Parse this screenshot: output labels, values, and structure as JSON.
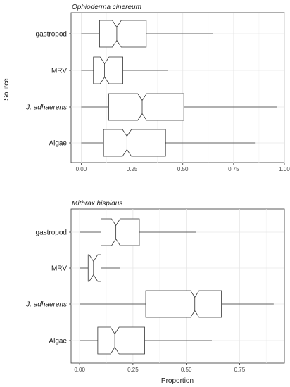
{
  "chart_data": [
    {
      "type": "boxplot",
      "orientation": "horizontal",
      "notched": true,
      "title": "Ophioderma cinereum",
      "xlabel": "",
      "ylabel": "Source",
      "xlim": [
        -0.05,
        1.0
      ],
      "xticks": [
        "0.00",
        "0.25",
        "0.50",
        "0.75",
        "1.00"
      ],
      "xtick_values": [
        0,
        0.25,
        0.5,
        0.75,
        1.0
      ],
      "grid": true,
      "categories": [
        {
          "label": "gastropod",
          "italic": false,
          "min": 0.0,
          "q1": 0.09,
          "median": 0.175,
          "q3": 0.32,
          "max": 0.65
        },
        {
          "label": "MRV",
          "italic": false,
          "min": 0.0,
          "q1": 0.06,
          "median": 0.115,
          "q3": 0.205,
          "max": 0.425
        },
        {
          "label": "J. adhaerens",
          "italic": true,
          "min": 0.0,
          "q1": 0.135,
          "median": 0.3,
          "q3": 0.505,
          "max": 0.965
        },
        {
          "label": "Algae",
          "italic": false,
          "min": 0.0,
          "q1": 0.11,
          "median": 0.225,
          "q3": 0.415,
          "max": 0.855
        }
      ]
    },
    {
      "type": "boxplot",
      "orientation": "horizontal",
      "notched": true,
      "title": "Mithrax hispidus",
      "xlabel": "Proportion",
      "ylabel": "",
      "xlim": [
        -0.04,
        0.96
      ],
      "xticks": [
        "0.00",
        "0.25",
        "0.50",
        "0.75"
      ],
      "xtick_values": [
        0,
        0.25,
        0.5,
        0.75
      ],
      "grid": true,
      "categories": [
        {
          "label": "gastropod",
          "italic": false,
          "min": 0.0,
          "q1": 0.1,
          "median": 0.17,
          "q3": 0.28,
          "max": 0.545
        },
        {
          "label": "MRV",
          "italic": false,
          "min": 0.0,
          "q1": 0.04,
          "median": 0.065,
          "q3": 0.1,
          "max": 0.19
        },
        {
          "label": "J. adhaerens",
          "italic": true,
          "min": 0.0,
          "q1": 0.31,
          "median": 0.54,
          "q3": 0.665,
          "max": 0.91
        },
        {
          "label": "Algae",
          "italic": false,
          "min": 0.0,
          "q1": 0.085,
          "median": 0.165,
          "q3": 0.305,
          "max": 0.62
        }
      ]
    }
  ]
}
